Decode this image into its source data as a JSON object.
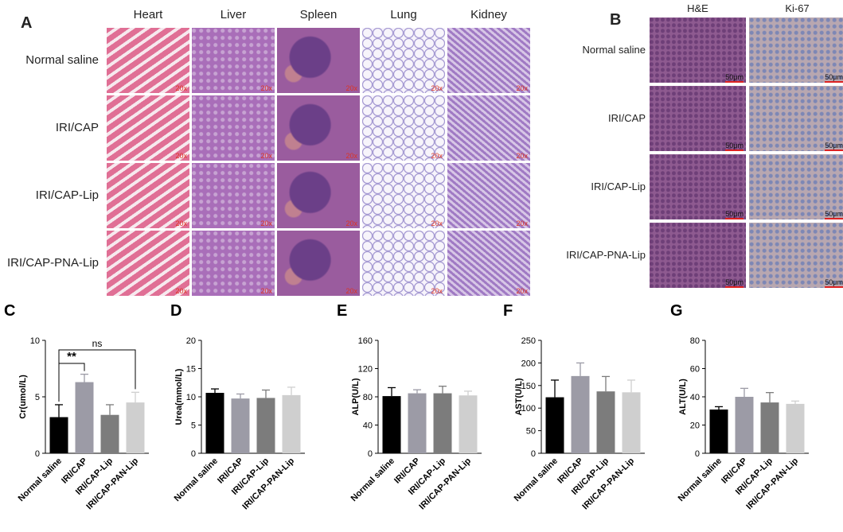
{
  "panel_a": {
    "letter": "A",
    "columns": [
      "Heart",
      "Liver",
      "Spleen",
      "Lung",
      "Kidney"
    ],
    "rows": [
      "Normal saline",
      "IRI/CAP",
      "IRI/CAP-Lip",
      "IRI/CAP-PNA-Lip"
    ],
    "magnification": "20x",
    "tissue_colors": {
      "Heart": "#e58aa8",
      "Liver": "#b07cc0",
      "Spleen": "#9a5c9e",
      "Lung": "#f1ecf6",
      "Kidney": "#b896cf"
    }
  },
  "panel_b": {
    "letter": "B",
    "columns": [
      "H&E",
      "Ki-67"
    ],
    "rows": [
      "Normal saline",
      "IRI/CAP",
      "IRI/CAP-Lip",
      "IRI/CAP-PNA-Lip"
    ],
    "scale_bar": "50μm",
    "stain_colors": {
      "H&E": "#8a5a8e",
      "Ki-67": "#a49cb8"
    }
  },
  "chart_data": [
    {
      "letter": "C",
      "type": "bar",
      "ylabel": "Cr(umol/L)",
      "ylim": [
        0,
        10
      ],
      "yticks": [
        0,
        5,
        10
      ],
      "categories": [
        "Normal saline",
        "IRI/CAP",
        "IRI/CAP-Lip",
        "IRI/CAP-PAN-Lip"
      ],
      "values": [
        3.2,
        6.3,
        3.4,
        4.5
      ],
      "errors": [
        1.1,
        0.7,
        0.9,
        0.9
      ],
      "annotations": [
        {
          "from": 0,
          "to": 1,
          "text": "**"
        },
        {
          "from": 0,
          "to": 3,
          "text": "ns"
        }
      ]
    },
    {
      "letter": "D",
      "type": "bar",
      "ylabel": "Urea(mmol/L)",
      "ylim": [
        0,
        20
      ],
      "yticks": [
        0,
        5,
        10,
        15,
        20
      ],
      "categories": [
        "Normal saline",
        "IRI/CAP",
        "IRI/CAP-Lip",
        "IRI/CAP-PAN-Lip"
      ],
      "values": [
        10.7,
        9.7,
        9.8,
        10.3
      ],
      "errors": [
        0.7,
        0.8,
        1.4,
        1.4
      ]
    },
    {
      "letter": "E",
      "type": "bar",
      "ylabel": "ALP(U/L)",
      "ylim": [
        0,
        160
      ],
      "yticks": [
        0,
        40,
        80,
        120,
        160
      ],
      "categories": [
        "Normal saline",
        "IRI/CAP",
        "IRI/CAP-Lip",
        "IRI/CAP-PAN-Lip"
      ],
      "values": [
        81,
        85,
        85,
        82
      ],
      "errors": [
        12,
        5,
        10,
        6
      ]
    },
    {
      "letter": "F",
      "type": "bar",
      "ylabel": "AST(U/L)",
      "ylim": [
        0,
        250
      ],
      "yticks": [
        0,
        50,
        100,
        150,
        200,
        250
      ],
      "categories": [
        "Normal saline",
        "IRI/CAP",
        "IRI/CAP-Lip",
        "IRI/CAP-PAN-Lip"
      ],
      "values": [
        124,
        171,
        137,
        135
      ],
      "errors": [
        38,
        29,
        33,
        27
      ]
    },
    {
      "letter": "G",
      "type": "bar",
      "ylabel": "ALT(U/L)",
      "ylim": [
        0,
        80
      ],
      "yticks": [
        0,
        20,
        40,
        60,
        80
      ],
      "categories": [
        "Normal saline",
        "IRI/CAP",
        "IRI/CAP-Lip",
        "IRI/CAP-PAN-Lip"
      ],
      "values": [
        31,
        40,
        36,
        35
      ],
      "errors": [
        2,
        6,
        7,
        2
      ]
    }
  ],
  "bar_colors": [
    "#000000",
    "#9c9ba6",
    "#7c7c7c",
    "#cfcfcf"
  ]
}
